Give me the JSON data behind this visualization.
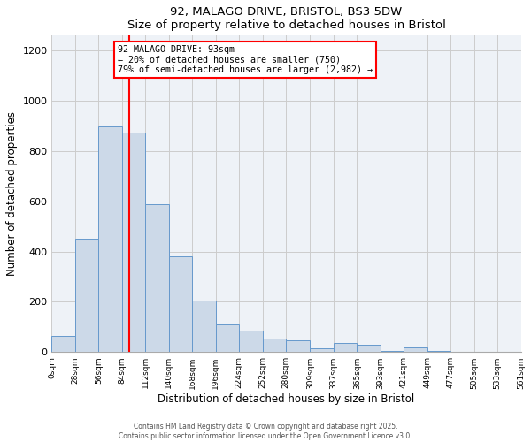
{
  "title": "92, MALAGO DRIVE, BRISTOL, BS3 5DW",
  "subtitle": "Size of property relative to detached houses in Bristol",
  "xlabel": "Distribution of detached houses by size in Bristol",
  "ylabel": "Number of detached properties",
  "bar_color": "#ccd9e8",
  "bar_edge_color": "#6699cc",
  "bin_edges": [
    0,
    28,
    56,
    84,
    112,
    140,
    168,
    196,
    224,
    252,
    280,
    309,
    337,
    365,
    393,
    421,
    449,
    477,
    505,
    533,
    561
  ],
  "bar_values": [
    65,
    450,
    900,
    875,
    590,
    380,
    205,
    110,
    85,
    55,
    45,
    15,
    35,
    30,
    5,
    20,
    5,
    0,
    0,
    0
  ],
  "tick_labels": [
    "0sqm",
    "28sqm",
    "56sqm",
    "84sqm",
    "112sqm",
    "140sqm",
    "168sqm",
    "196sqm",
    "224sqm",
    "252sqm",
    "280sqm",
    "309sqm",
    "337sqm",
    "365sqm",
    "393sqm",
    "421sqm",
    "449sqm",
    "477sqm",
    "505sqm",
    "533sqm",
    "561sqm"
  ],
  "ylim": [
    0,
    1260
  ],
  "yticks": [
    0,
    200,
    400,
    600,
    800,
    1000,
    1200
  ],
  "red_line_x": 93,
  "annotation_line1": "92 MALAGO DRIVE: 93sqm",
  "annotation_line2": "← 20% of detached houses are smaller (750)",
  "annotation_line3": "79% of semi-detached houses are larger (2,982) →",
  "footer1": "Contains HM Land Registry data © Crown copyright and database right 2025.",
  "footer2": "Contains public sector information licensed under the Open Government Licence v3.0.",
  "background_color": "#ffffff",
  "plot_background_color": "#eef2f7",
  "grid_color": "#cccccc"
}
